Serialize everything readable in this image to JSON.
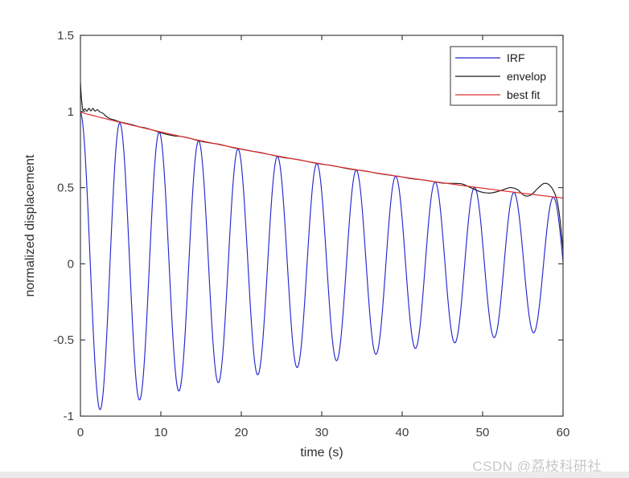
{
  "watermark": "CSDN @荔枝科研社",
  "colors": {
    "irf": "#2626cf",
    "envelope": "#1a1a1a",
    "fit": "#e03232",
    "axis": "#2f2f2f",
    "tick_label": "#3d3d3d",
    "watermark": "#c7c7c7",
    "bottom_bar": "#ebebeb",
    "background": "#ffffff",
    "legend_border": "#333333"
  },
  "chart_data": {
    "type": "line",
    "title": "",
    "xlabel": "time (s)",
    "ylabel": "normalized displacement",
    "xlim": [
      0,
      60
    ],
    "ylim": [
      -1,
      1.5
    ],
    "xticks": [
      0,
      10,
      20,
      30,
      40,
      50,
      60
    ],
    "yticks": [
      -1,
      -0.5,
      0,
      0.5,
      1,
      1.5
    ],
    "grid": false,
    "legend_position": "top-right-inside",
    "series": [
      {
        "name": "IRF",
        "color": "#2626cf",
        "model": "damped_cosine",
        "params": {
          "amplitude": 0.99,
          "decay_rate_per_s": 0.0139,
          "period_s": 4.9,
          "t_start": 0,
          "t_end": 60
        },
        "description": "exp(-0.0139 t) * cos(2*pi*t/4.9), peaks near t = 0, 4.9, 9.8 ... 58.8 s, first minimum ~ -0.94 at t ~ 2.45 s, amplitude decays from ~1.0 to ~0.43 over 60 s"
      },
      {
        "name": "envelop",
        "color": "#1a1a1a",
        "model": "sampled_points",
        "points": {
          "t": [
            0,
            0.12,
            0.3,
            0.55,
            0.8,
            1.05,
            1.3,
            1.55,
            1.8,
            2.1,
            2.4,
            2.8,
            3.2,
            3.7,
            4.2,
            4.9,
            5.7,
            6.5,
            7.3,
            8.1,
            9.0,
            9.9,
            10.8,
            11.7,
            12.6,
            13.5,
            14.4,
            15.3,
            16.2,
            17.1,
            18.0,
            19.0,
            20.0,
            21.0,
            22.0,
            23.0,
            24.0,
            25.0,
            26.0,
            27.0,
            28.0,
            29.0,
            30.0,
            31.0,
            32.0,
            33.0,
            34.0,
            35.0,
            36.0,
            37.0,
            38.0,
            39.0,
            40.0,
            41.0,
            42.0,
            43.0,
            44.0,
            45.0,
            46.2,
            47.4,
            48.6,
            49.8,
            51.0,
            52.2,
            53.4,
            54.3,
            55.2,
            56.0,
            56.8,
            57.6,
            58.3,
            58.9,
            59.3,
            59.6,
            59.85,
            60.0
          ],
          "v": [
            1.19,
            1.09,
            1.01,
            1.018,
            1.002,
            1.02,
            1.004,
            1.02,
            1.003,
            1.012,
            0.998,
            0.988,
            0.968,
            0.952,
            0.945,
            0.932,
            0.922,
            0.912,
            0.9,
            0.892,
            0.878,
            0.862,
            0.849,
            0.84,
            0.836,
            0.826,
            0.812,
            0.801,
            0.793,
            0.786,
            0.776,
            0.762,
            0.752,
            0.742,
            0.734,
            0.724,
            0.712,
            0.7,
            0.692,
            0.685,
            0.674,
            0.663,
            0.654,
            0.648,
            0.638,
            0.627,
            0.618,
            0.612,
            0.604,
            0.593,
            0.585,
            0.578,
            0.57,
            0.56,
            0.554,
            0.548,
            0.539,
            0.53,
            0.528,
            0.525,
            0.498,
            0.472,
            0.465,
            0.48,
            0.5,
            0.488,
            0.448,
            0.452,
            0.492,
            0.527,
            0.518,
            0.47,
            0.405,
            0.3,
            0.17,
            0.09
          ]
        },
        "description": "Hilbert-type amplitude envelope: starts with end-effect spike at 1.19, ripples near 1.0, follows exponential decay, oscillating wiggles after t~45 s, hump to ~0.53 near t~57.6 s, plunges to ~0.09 at t = 60 s"
      },
      {
        "name": "best fit",
        "color": "#e03232",
        "model": "exponential_decay",
        "params": {
          "amplitude": 0.995,
          "decay_rate_per_s": 0.0139,
          "t_start": 0,
          "t_end": 60
        },
        "description": "smooth fit 0.995*exp(-0.0139 t): ~0.99 at t=0 down to ~0.43 at t=60 s"
      }
    ]
  }
}
